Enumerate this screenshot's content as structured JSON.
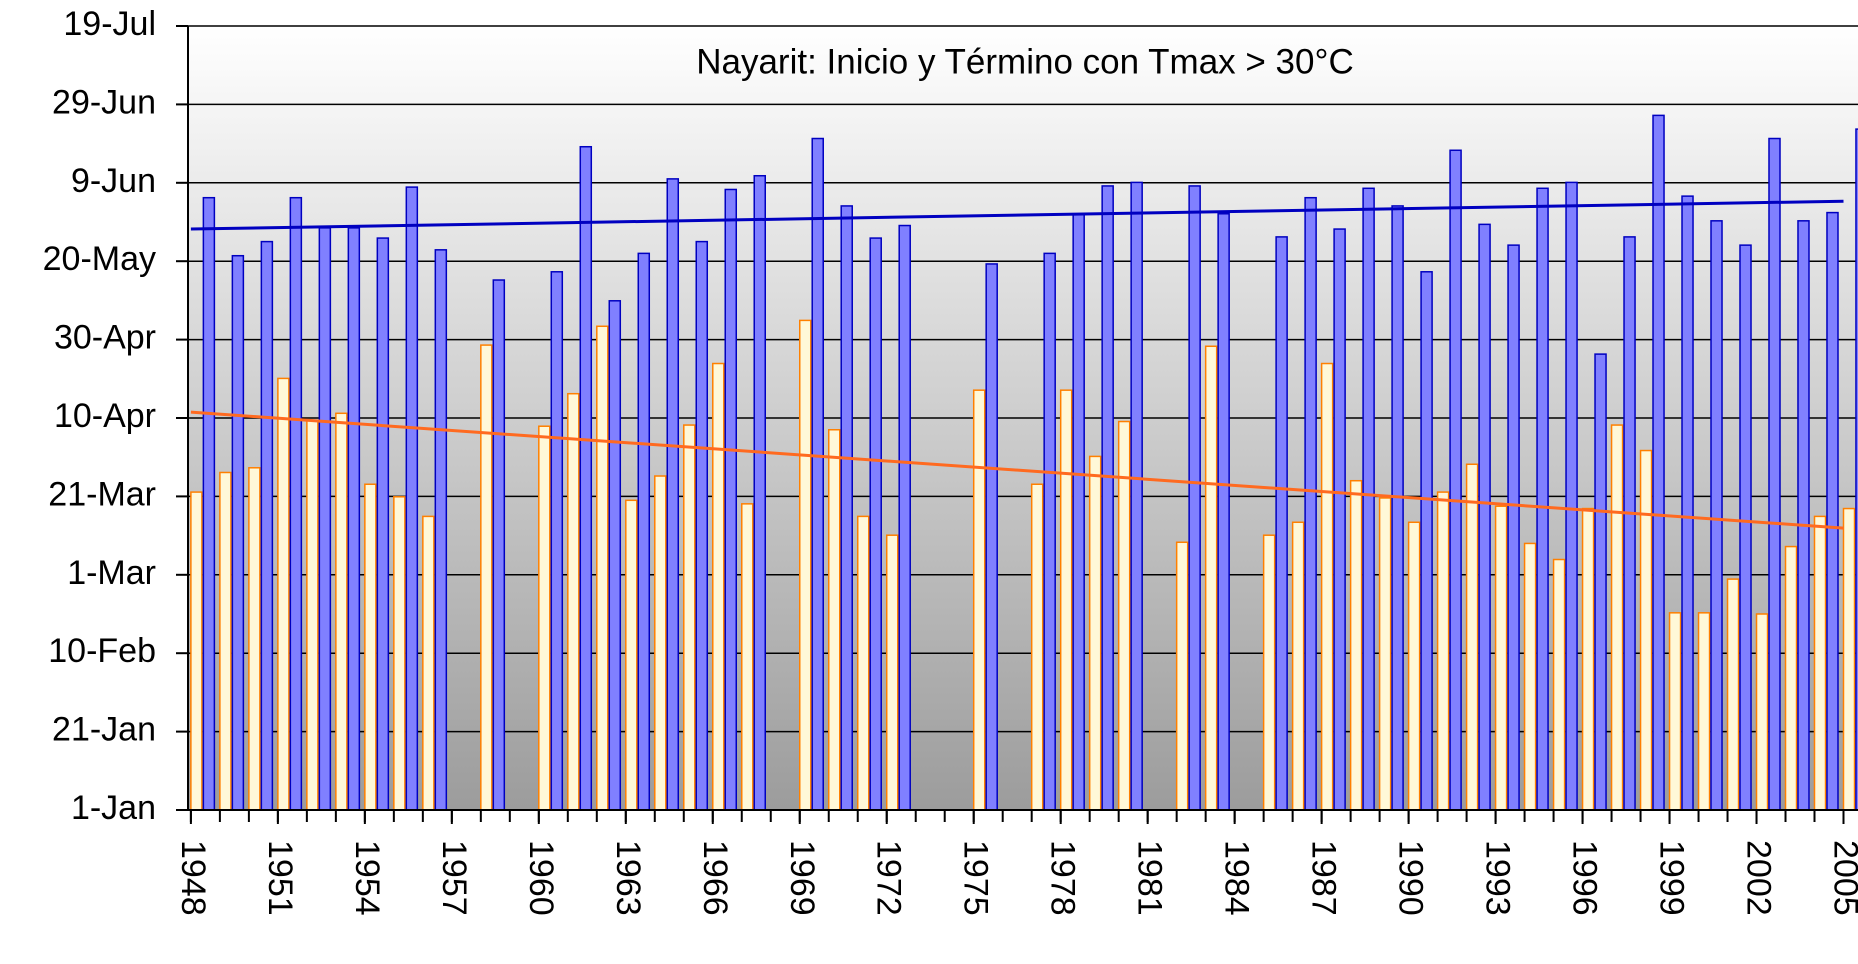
{
  "chart_data": {
    "type": "bar",
    "title": "Nayarit: Inicio y Término con Tmax > 30°C",
    "x": [
      1948,
      1949,
      1950,
      1951,
      1952,
      1953,
      1954,
      1955,
      1956,
      1957,
      1958,
      1959,
      1960,
      1961,
      1962,
      1963,
      1964,
      1965,
      1966,
      1967,
      1968,
      1969,
      1970,
      1971,
      1972,
      1973,
      1974,
      1975,
      1976,
      1977,
      1978,
      1979,
      1980,
      1981,
      1982,
      1983,
      1984,
      1985,
      1986,
      1987,
      1988,
      1989,
      1990,
      1991,
      1992,
      1993,
      1994,
      1995,
      1996,
      1997,
      1998,
      1999,
      2000,
      2001,
      2002,
      2003,
      2004,
      2005
    ],
    "series": [
      {
        "color": "#ff8000",
        "fill": "#fff8d8",
        "values": [
          82.1,
          87.1,
          88.3,
          111.1,
          100.4,
          102.2,
          84.1,
          80.9,
          75.9,
          null,
          119.6,
          null,
          98.9,
          107.2,
          124.4,
          80.0,
          86.2,
          99.2,
          114.9,
          79.1,
          null,
          125.9,
          98.0,
          75.9,
          71.1,
          null,
          null,
          108.1,
          null,
          84.1,
          108.1,
          91.2,
          100.1,
          null,
          69.3,
          119.3,
          null,
          71.1,
          74.4,
          114.9,
          85.0,
          80.6,
          74.4,
          82.1,
          89.2,
          78.5,
          69.0,
          64.9,
          77.9,
          99.2,
          92.7,
          51.3,
          51.3,
          59.9,
          51.0,
          68.2,
          75.9,
          77.9
        ]
      },
      {
        "color": "#0000c0",
        "fill": "#8080ff",
        "values": [
          157.2,
          142.4,
          146.0,
          157.2,
          149.5,
          149.5,
          146.9,
          159.9,
          143.9,
          null,
          136.2,
          null,
          138.3,
          170.2,
          130.9,
          143.0,
          162.0,
          146.0,
          159.3,
          162.8,
          null,
          172.3,
          155.1,
          146.9,
          150.1,
          null,
          null,
          140.3,
          null,
          143.0,
          153.1,
          160.2,
          161.1,
          null,
          160.2,
          153.1,
          null,
          147.2,
          157.2,
          149.2,
          159.6,
          155.1,
          138.3,
          169.3,
          150.4,
          145.1,
          159.6,
          161.1,
          117.3,
          147.2,
          178.2,
          157.6,
          151.3,
          145.1,
          172.3,
          151.3,
          153.4,
          174.7
        ]
      }
    ],
    "trend_lines": [
      {
        "color": "#0000c0",
        "x": [
          1948,
          2005
        ],
        "values": [
          149.2,
          156.3
        ]
      },
      {
        "color": "#ff6a20",
        "x": [
          1948,
          2005
        ],
        "values": [
          102.5,
          72.9
        ]
      }
    ],
    "xlim": [
      1947.9,
      2005.5
    ],
    "xticks": [
      1948,
      1951,
      1954,
      1957,
      1960,
      1963,
      1966,
      1969,
      1972,
      1975,
      1978,
      1981,
      1984,
      1987,
      1990,
      1993,
      1996,
      1999,
      2002,
      2005
    ],
    "ylim": [
      1,
      201
    ],
    "yticks": [
      {
        "value": 1,
        "label": "1-Jan"
      },
      {
        "value": 21,
        "label": "21-Jan"
      },
      {
        "value": 41,
        "label": "10-Feb"
      },
      {
        "value": 61,
        "label": "1-Mar"
      },
      {
        "value": 81,
        "label": "21-Mar"
      },
      {
        "value": 101,
        "label": "10-Apr"
      },
      {
        "value": 121,
        "label": "30-Apr"
      },
      {
        "value": 141,
        "label": "20-May"
      },
      {
        "value": 161,
        "label": "9-Jun"
      },
      {
        "value": 181,
        "label": "29-Jun"
      },
      {
        "value": 201,
        "label": "19-Jul"
      }
    ],
    "grid": true
  }
}
